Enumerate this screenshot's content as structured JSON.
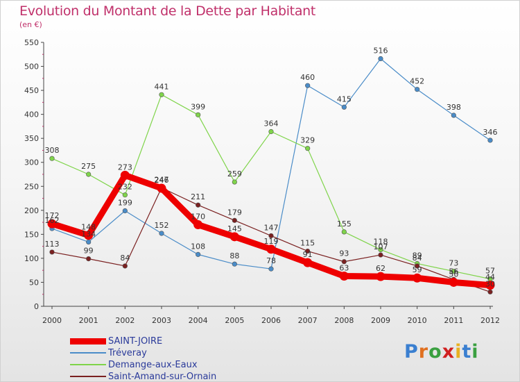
{
  "title": "Evolution du Montant de la Dette par Habitant",
  "subtitle": "(en €)",
  "logo_text": "Proxiti",
  "chart_data": {
    "type": "line",
    "x": [
      "2000",
      "2001",
      "2002",
      "2003",
      "2004",
      "2005",
      "2006",
      "2007",
      "2008",
      "2009",
      "2010",
      "2011",
      "2012"
    ],
    "ylim": [
      0,
      550
    ],
    "yticks": [
      0,
      50,
      100,
      150,
      200,
      250,
      300,
      350,
      400,
      450,
      500,
      550
    ],
    "grid": false,
    "legend_position": "bottom-left",
    "series": [
      {
        "name": "SAINT-JOIRE",
        "color": "#ee0000",
        "values": [
          172,
          148,
          273,
          246,
          170,
          145,
          119,
          91,
          63,
          62,
          59,
          50,
          44
        ],
        "labels": [
          "172",
          "148",
          "273",
          "246",
          "170",
          "145",
          "119",
          "91",
          "63",
          "62",
          "59",
          "50",
          "44"
        ]
      },
      {
        "name": "Tréveray",
        "color": "#4a8cc8",
        "values": [
          162,
          134,
          199,
          152,
          108,
          88,
          78,
          460,
          415,
          516,
          452,
          398,
          346
        ],
        "labels": [
          "162",
          "134",
          "199",
          "152",
          "108",
          "88",
          "78",
          "460",
          "415",
          "516",
          "452",
          "398",
          "346"
        ]
      },
      {
        "name": "Demange-aux-Eaux",
        "color": "#7fd44a",
        "values": [
          308,
          275,
          232,
          441,
          399,
          259,
          364,
          329,
          155,
          118,
          89,
          73,
          57
        ],
        "labels": [
          "308",
          "275",
          "232",
          "441",
          "399",
          "259",
          "364",
          "329",
          "155",
          "118",
          "89",
          "73",
          "57"
        ]
      },
      {
        "name": "Saint-Amand-sur-Ornain",
        "color": "#7a2020",
        "values": [
          113,
          99,
          84,
          247,
          211,
          179,
          147,
          115,
          93,
          107,
          84,
          56,
          30
        ],
        "labels": [
          "113",
          "99",
          "84",
          "247",
          "211",
          "179",
          "147",
          "115",
          "93",
          "107",
          "84",
          "56",
          "30"
        ]
      }
    ]
  }
}
